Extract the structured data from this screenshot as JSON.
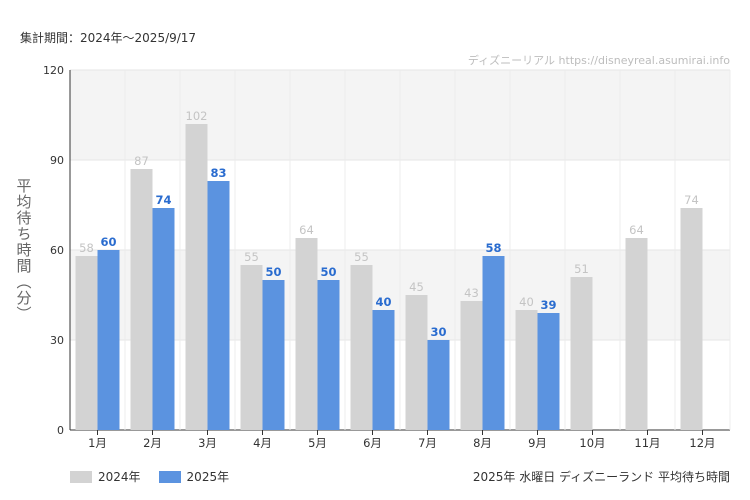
{
  "period_text": "集計期間：2024年～2025/9/17",
  "watermark": "ディズニーリアル https://disneyreal.asumirai.info",
  "footer_title": "2025年 水曜日 ディズニーランド 平均待ち時間",
  "colors": {
    "series_2024": "#d3d3d3",
    "series_2025": "#5b93e0",
    "label_2024": "#c4c4c4",
    "label_2025": "#2a6ccf",
    "band": "#f4f4f4"
  },
  "chart_data": {
    "type": "bar",
    "ylabel": "平均待ち時間（分）",
    "xlabel": "",
    "ylim": [
      0,
      120
    ],
    "yticks": [
      0,
      30,
      60,
      90,
      120
    ],
    "grid": true,
    "legend_position": "bottom-left",
    "categories": [
      "1月",
      "2月",
      "3月",
      "4月",
      "5月",
      "6月",
      "7月",
      "8月",
      "9月",
      "10月",
      "11月",
      "12月"
    ],
    "series": [
      {
        "name": "2024年",
        "values": [
          58,
          87,
          102,
          55,
          64,
          55,
          45,
          43,
          40,
          51,
          64,
          74
        ]
      },
      {
        "name": "2025年",
        "values": [
          60,
          74,
          83,
          50,
          50,
          40,
          30,
          58,
          39,
          null,
          null,
          null
        ]
      }
    ]
  }
}
